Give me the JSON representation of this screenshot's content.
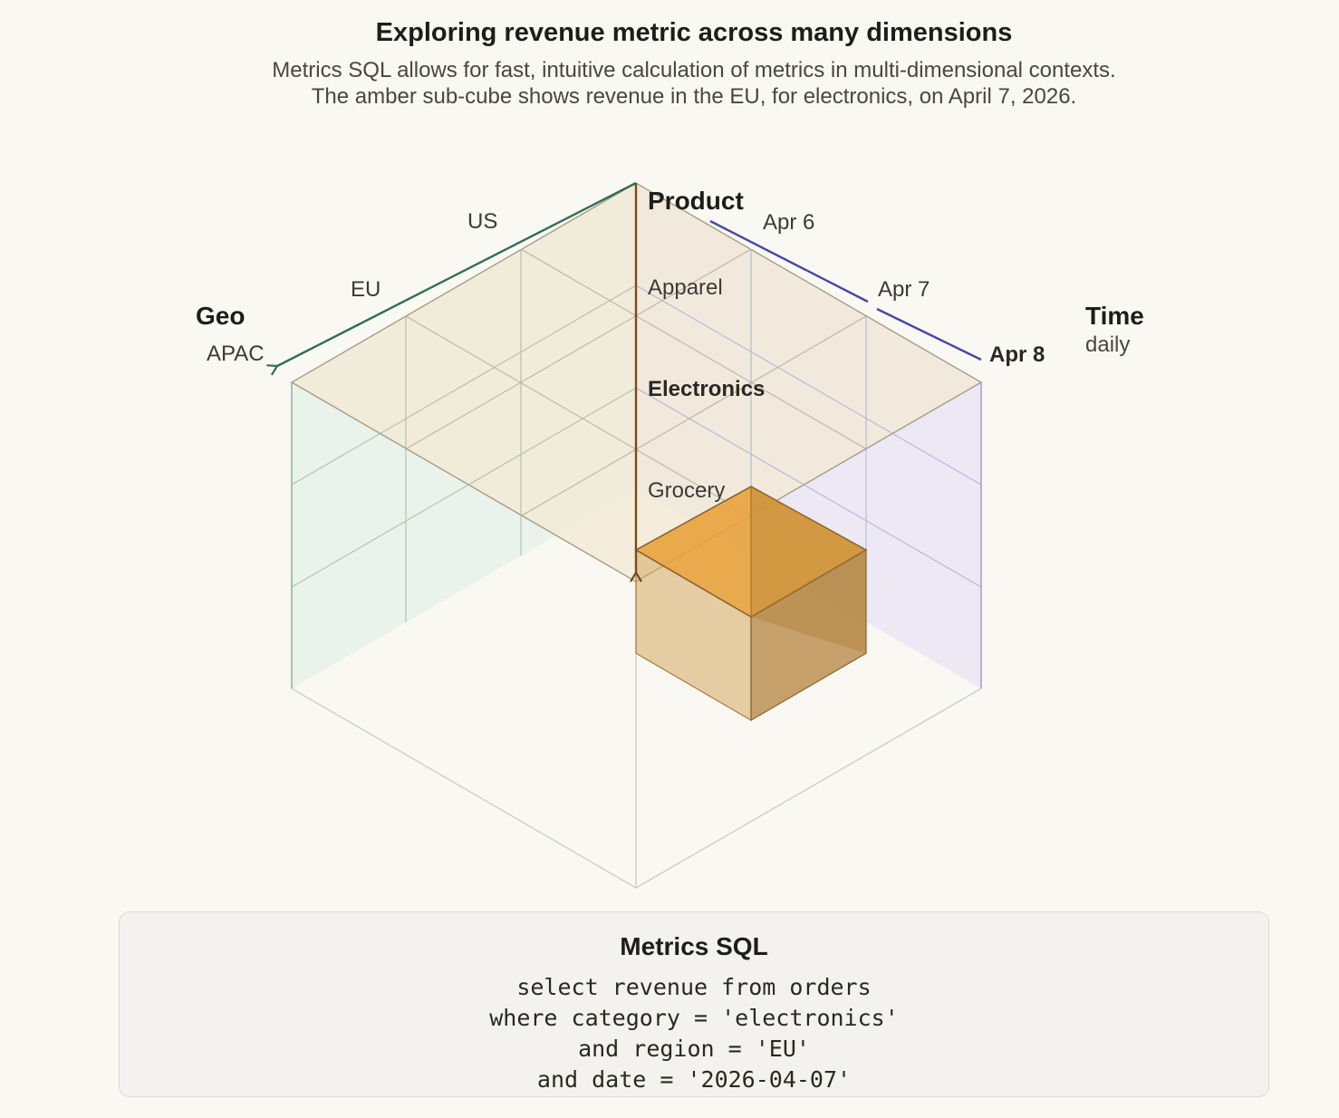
{
  "header": {
    "title": "Exploring revenue metric across many dimensions",
    "subtitle_line1": "Metrics SQL allows for fast, intuitive calculation of metrics in multi-dimensional contexts.",
    "subtitle_line2": "The amber sub-cube shows revenue in the EU, for electronics, on April 7, 2026."
  },
  "axes": {
    "geo": {
      "title": "Geo",
      "ticks": [
        "US",
        "EU",
        "APAC"
      ],
      "color": "#2f6f55"
    },
    "product": {
      "title": "Product",
      "ticks": [
        "Apparel",
        "Electronics",
        "Grocery"
      ],
      "color": "#7a4a1e"
    },
    "time": {
      "title": "Time",
      "subtitle": "daily",
      "ticks": [
        "Apr 6",
        "Apr 7",
        "Apr 8"
      ],
      "color": "#4b45a8"
    }
  },
  "highlight": {
    "color": "#e8a23c"
  },
  "sql": {
    "title": "Metrics SQL",
    "lines": [
      "select revenue from orders",
      "where category = 'electronics'",
      "and region = 'EU'",
      "and date = '2026-04-07'"
    ]
  }
}
